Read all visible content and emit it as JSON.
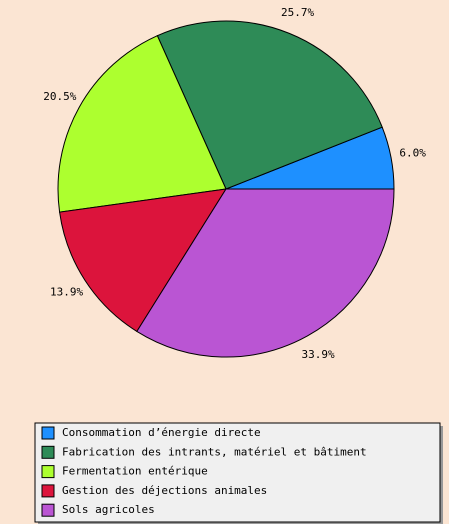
{
  "chart_data": {
    "type": "pie",
    "categories": [
      "Consommation d’énergie directe",
      "Fabrication des intrants, matériel et bâtiment",
      "Fermentation entérique",
      "Gestion des déjections animales",
      "Sols agricoles"
    ],
    "values": [
      6.0,
      25.7,
      20.5,
      13.9,
      33.9
    ],
    "value_labels": [
      "6.0%",
      "25.7%",
      "20.5%",
      "13.9%",
      "33.9%"
    ],
    "colors": [
      "#1e90ff",
      "#2e8b57",
      "#adff2f",
      "#dc143c",
      "#ba55d3"
    ],
    "legend": "bottom"
  }
}
